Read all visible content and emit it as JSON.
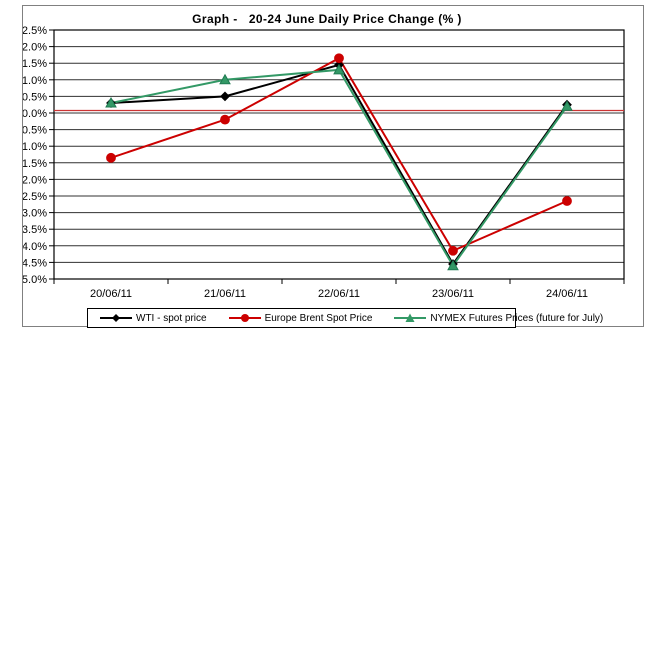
{
  "chart_data": {
    "type": "line",
    "title": "Graph -   20-24 June Daily Price Change (% )",
    "xlabel": "",
    "ylabel": "",
    "categories": [
      "20/06/11",
      "21/06/11",
      "22/06/11",
      "23/06/11",
      "24/06/11"
    ],
    "series": [
      {
        "name": "WTI - spot price",
        "color": "#000000",
        "marker": "diamond",
        "values": [
          0.3,
          0.5,
          1.45,
          -4.55,
          0.25
        ]
      },
      {
        "name": "Europe Brent Spot Price",
        "color": "#cc0000",
        "marker": "circle",
        "values": [
          -1.35,
          -0.2,
          1.65,
          -4.15,
          -2.65
        ]
      },
      {
        "name": "NYMEX Futures Prices (future for July)",
        "color": "#339966",
        "marker": "triangle",
        "values": [
          0.3,
          1.0,
          1.3,
          -4.6,
          0.2
        ]
      }
    ],
    "ylim": [
      -5.0,
      2.5
    ],
    "ytick_step": 0.5,
    "ytick_labels": [
      "2.5%",
      "2.0%",
      "1.5%",
      "1.0%",
      "0.5%",
      "0.0%",
      "-0.5%",
      "-1.0%",
      "-1.5%",
      "-2.0%",
      "-2.5%",
      "-3.0%",
      "-3.5%",
      "-4.0%",
      "-4.5%",
      "-5.0%"
    ],
    "grid": true,
    "legend_position": "bottom",
    "zero_line": {
      "value": 0.0,
      "color": "#cc3333"
    },
    "axis_color": "#000000",
    "gridline_color": "#303030"
  }
}
